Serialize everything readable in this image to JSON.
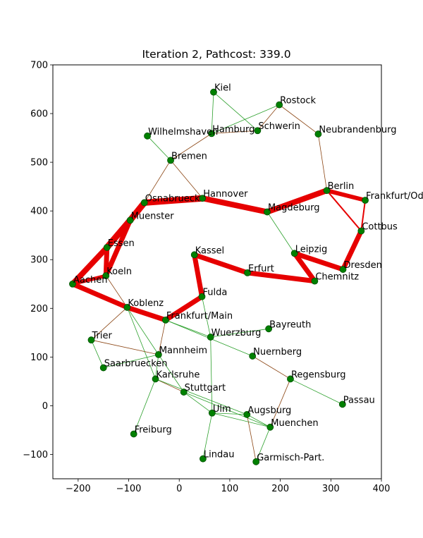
{
  "chart_data": {
    "type": "network",
    "title": "Iteration 2, Pathcost: 339.0",
    "xlim": [
      -250,
      400
    ],
    "ylim": [
      -150,
      700
    ],
    "xticks": [
      -200,
      -100,
      0,
      100,
      200,
      300,
      400
    ],
    "yticks": [
      -100,
      0,
      100,
      200,
      300,
      400,
      500,
      600,
      700
    ],
    "colors": {
      "node": "#008000",
      "node_edge": "#005000",
      "edge_green": "#2ca02c",
      "edge_brown": "#8b4513",
      "edge_red": "#e60000"
    },
    "nodes": [
      {
        "name": "Kiel",
        "x": 68,
        "y": 644
      },
      {
        "name": "Rostock",
        "x": 198,
        "y": 618
      },
      {
        "name": "Hamburg",
        "x": 64,
        "y": 559
      },
      {
        "name": "Schwerin",
        "x": 155,
        "y": 565
      },
      {
        "name": "Neubrandenburg",
        "x": 275,
        "y": 558
      },
      {
        "name": "Wilhelmshaven",
        "x": -63,
        "y": 554
      },
      {
        "name": "Bremen",
        "x": -17,
        "y": 504
      },
      {
        "name": "Berlin",
        "x": 292,
        "y": 442
      },
      {
        "name": "Frankfurt/Oder",
        "x": 368,
        "y": 422
      },
      {
        "name": "Hannover",
        "x": 46,
        "y": 426
      },
      {
        "name": "Osnabrueck",
        "x": -69,
        "y": 417
      },
      {
        "name": "Magdeburg",
        "x": 174,
        "y": 398
      },
      {
        "name": "Muenster",
        "x": -97,
        "y": 381
      },
      {
        "name": "Cottbus",
        "x": 360,
        "y": 359
      },
      {
        "name": "Essen",
        "x": -143,
        "y": 325
      },
      {
        "name": "Kassel",
        "x": 30,
        "y": 310
      },
      {
        "name": "Leipzig",
        "x": 228,
        "y": 313
      },
      {
        "name": "Dresden",
        "x": 324,
        "y": 280
      },
      {
        "name": "Erfurt",
        "x": 135,
        "y": 273
      },
      {
        "name": "Koeln",
        "x": -145,
        "y": 267
      },
      {
        "name": "Chemnitz",
        "x": 268,
        "y": 256
      },
      {
        "name": "Aachen",
        "x": -211,
        "y": 250
      },
      {
        "name": "Fulda",
        "x": 45,
        "y": 224
      },
      {
        "name": "Koblenz",
        "x": -103,
        "y": 202
      },
      {
        "name": "Frankfurt/Main",
        "x": -27,
        "y": 176
      },
      {
        "name": "Bayreuth",
        "x": 177,
        "y": 158
      },
      {
        "name": "Wuerzburg",
        "x": 62,
        "y": 141
      },
      {
        "name": "Trier",
        "x": -174,
        "y": 135
      },
      {
        "name": "Mannheim",
        "x": -41,
        "y": 105
      },
      {
        "name": "Nuernberg",
        "x": 145,
        "y": 102
      },
      {
        "name": "Saarbruecken",
        "x": -150,
        "y": 78
      },
      {
        "name": "Regensburg",
        "x": 220,
        "y": 55
      },
      {
        "name": "Karlsruhe",
        "x": -47,
        "y": 55
      },
      {
        "name": "Stuttgart",
        "x": 9,
        "y": 28
      },
      {
        "name": "Passau",
        "x": 323,
        "y": 3
      },
      {
        "name": "Ulm",
        "x": 65,
        "y": -15
      },
      {
        "name": "Augsburg",
        "x": 134,
        "y": -18
      },
      {
        "name": "Muenchen",
        "x": 180,
        "y": -44
      },
      {
        "name": "Freiburg",
        "x": -90,
        "y": -58
      },
      {
        "name": "Lindau",
        "x": 47,
        "y": -109
      },
      {
        "name": "Garmisch-Part.",
        "x": 152,
        "y": -115
      }
    ],
    "edges": [
      {
        "from": "Kiel",
        "to": "Hamburg",
        "style": "green"
      },
      {
        "from": "Kiel",
        "to": "Schwerin",
        "style": "green"
      },
      {
        "from": "Hamburg",
        "to": "Rostock",
        "style": "green"
      },
      {
        "from": "Hamburg",
        "to": "Schwerin",
        "style": "brown"
      },
      {
        "from": "Schwerin",
        "to": "Rostock",
        "style": "brown"
      },
      {
        "from": "Rostock",
        "to": "Neubrandenburg",
        "style": "brown"
      },
      {
        "from": "Neubrandenburg",
        "to": "Berlin",
        "style": "brown"
      },
      {
        "from": "Hamburg",
        "to": "Bremen",
        "style": "brown"
      },
      {
        "from": "Wilhelmshaven",
        "to": "Bremen",
        "style": "green"
      },
      {
        "from": "Bremen",
        "to": "Hannover",
        "style": "brown"
      },
      {
        "from": "Bremen",
        "to": "Osnabrueck",
        "style": "brown"
      },
      {
        "from": "Magdeburg",
        "to": "Leipzig",
        "style": "green"
      },
      {
        "from": "Koeln",
        "to": "Koblenz",
        "style": "brown"
      },
      {
        "from": "Koblenz",
        "to": "Trier",
        "style": "brown"
      },
      {
        "from": "Koblenz",
        "to": "Mannheim",
        "style": "green"
      },
      {
        "from": "Koblenz",
        "to": "Karlsruhe",
        "style": "green"
      },
      {
        "from": "Frankfurt/Main",
        "to": "Wuerzburg",
        "style": "green"
      },
      {
        "from": "Frankfurt/Main",
        "to": "Mannheim",
        "style": "brown"
      },
      {
        "from": "Frankfurt/Main",
        "to": "Nuernberg",
        "style": "green"
      },
      {
        "from": "Fulda",
        "to": "Wuerzburg",
        "style": "green"
      },
      {
        "from": "Wuerzburg",
        "to": "Bayreuth",
        "style": "green"
      },
      {
        "from": "Wuerzburg",
        "to": "Ulm",
        "style": "green"
      },
      {
        "from": "Nuernberg",
        "to": "Regensburg",
        "style": "brown"
      },
      {
        "from": "Regensburg",
        "to": "Passau",
        "style": "green"
      },
      {
        "from": "Regensburg",
        "to": "Muenchen",
        "style": "brown"
      },
      {
        "from": "Trier",
        "to": "Mannheim",
        "style": "brown"
      },
      {
        "from": "Trier",
        "to": "Saarbruecken",
        "style": "green"
      },
      {
        "from": "Saarbruecken",
        "to": "Mannheim",
        "style": "green"
      },
      {
        "from": "Mannheim",
        "to": "Karlsruhe",
        "style": "green"
      },
      {
        "from": "Mannheim",
        "to": "Stuttgart",
        "style": "green"
      },
      {
        "from": "Karlsruhe",
        "to": "Stuttgart",
        "style": "brown"
      },
      {
        "from": "Karlsruhe",
        "to": "Freiburg",
        "style": "green"
      },
      {
        "from": "Karlsruhe",
        "to": "Augsburg",
        "style": "green"
      },
      {
        "from": "Stuttgart",
        "to": "Ulm",
        "style": "green"
      },
      {
        "from": "Stuttgart",
        "to": "Muenchen",
        "style": "green"
      },
      {
        "from": "Ulm",
        "to": "Lindau",
        "style": "green"
      },
      {
        "from": "Ulm",
        "to": "Augsburg",
        "style": "green"
      },
      {
        "from": "Ulm",
        "to": "Muenchen",
        "style": "green"
      },
      {
        "from": "Augsburg",
        "to": "Muenchen",
        "style": "green"
      },
      {
        "from": "Augsburg",
        "to": "Garmisch-Part.",
        "style": "brown"
      },
      {
        "from": "Muenchen",
        "to": "Garmisch-Part.",
        "style": "green"
      },
      {
        "from": "Hannover",
        "to": "Magdeburg",
        "style": "green"
      },
      {
        "from": "Berlin",
        "to": "Cottbus",
        "style": "red",
        "width": 2
      },
      {
        "from": "Frankfurt/Oder",
        "to": "Cottbus",
        "style": "red",
        "width": 2
      },
      {
        "from": "Essen",
        "to": "Koeln",
        "style": "red",
        "width": 7
      },
      {
        "from": "Muenster",
        "to": "Koeln",
        "style": "red",
        "width": 7
      },
      {
        "from": "Osnabrueck",
        "to": "Hannover",
        "style": "red",
        "width": 9
      },
      {
        "from": "Osnabrueck",
        "to": "Muenster",
        "style": "red",
        "width": 9
      },
      {
        "from": "Muenster",
        "to": "Essen",
        "style": "red",
        "width": 9
      },
      {
        "from": "Essen",
        "to": "Aachen",
        "style": "red",
        "width": 8
      },
      {
        "from": "Aachen",
        "to": "Koeln",
        "style": "red",
        "width": 5
      },
      {
        "from": "Aachen",
        "to": "Koblenz",
        "style": "red",
        "width": 7
      },
      {
        "from": "Koblenz",
        "to": "Frankfurt/Main",
        "style": "red",
        "width": 7
      },
      {
        "from": "Frankfurt/Main",
        "to": "Fulda",
        "style": "red",
        "width": 7
      },
      {
        "from": "Fulda",
        "to": "Kassel",
        "style": "red",
        "width": 7
      },
      {
        "from": "Kassel",
        "to": "Erfurt",
        "style": "red",
        "width": 7
      },
      {
        "from": "Erfurt",
        "to": "Chemnitz",
        "style": "red",
        "width": 7
      },
      {
        "from": "Chemnitz",
        "to": "Leipzig",
        "style": "red",
        "width": 7
      },
      {
        "from": "Leipzig",
        "to": "Dresden",
        "style": "red",
        "width": 7
      },
      {
        "from": "Dresden",
        "to": "Cottbus",
        "style": "red",
        "width": 7
      },
      {
        "from": "Hannover",
        "to": "Magdeburg",
        "style": "red",
        "width": 8
      },
      {
        "from": "Magdeburg",
        "to": "Berlin",
        "style": "red",
        "width": 8
      },
      {
        "from": "Berlin",
        "to": "Frankfurt/Oder",
        "style": "red",
        "width": 6
      }
    ]
  }
}
